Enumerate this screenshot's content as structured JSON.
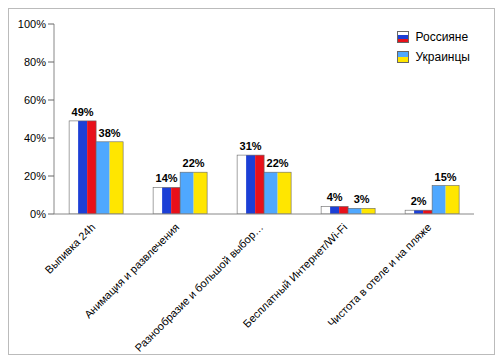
{
  "chart_data": {
    "type": "bar",
    "categories": [
      "Выпивка 24h",
      "Анимация и развлечения",
      "Разнообразие и большой выбор…",
      "Бесплатный Интернет/Wi-Fi",
      "Чистота в отеле и на пляже"
    ],
    "series": [
      {
        "name": "Россияне",
        "color": "#e8101a",
        "values": [
          49,
          14,
          31,
          4,
          2
        ],
        "value_labels": [
          "49%",
          "14%",
          "31%",
          "4%",
          "2%"
        ]
      },
      {
        "name": "Украинцы",
        "color": "#ffe600",
        "values": [
          38,
          22,
          22,
          3,
          15
        ],
        "value_labels": [
          "38%",
          "22%",
          "22%",
          "3%",
          "15%"
        ]
      }
    ],
    "ylim": [
      0,
      100
    ],
    "yticks": [
      {
        "value": 0,
        "label": "0%"
      },
      {
        "value": 20,
        "label": "20%"
      },
      {
        "value": 40,
        "label": "40%"
      },
      {
        "value": 60,
        "label": "60%"
      },
      {
        "value": 80,
        "label": "80%"
      },
      {
        "value": 100,
        "label": "100%"
      }
    ],
    "grid": false,
    "legend": "top-right",
    "data_labels": true
  }
}
